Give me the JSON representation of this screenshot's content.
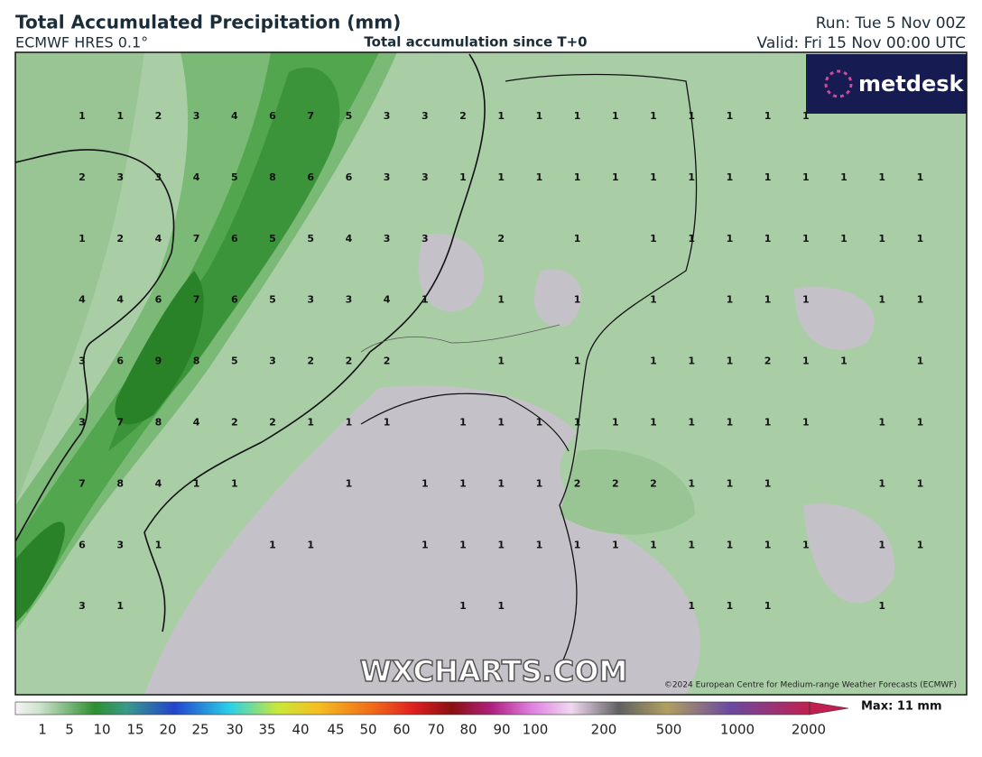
{
  "header": {
    "title": "Total Accumulated Precipitation (mm)",
    "model": "ECMWF HRES 0.1°",
    "subtitle": "Total accumulation since T+0",
    "run": "Run: Tue 5 Nov 00Z",
    "valid": "Valid: Fri 15 Nov 00:00 UTC"
  },
  "logo": "metdesk",
  "watermark": "WXCHARTS.COM",
  "copyright": "©2024 European Centre for Medium-range Weather Forecasts (ECMWF)",
  "grid": {
    "rows": [
      [
        1,
        1,
        2,
        3,
        4,
        6,
        7,
        5,
        3,
        3,
        2,
        1,
        1,
        1,
        1,
        1,
        1,
        1,
        1,
        1,
        null,
        null,
        null
      ],
      [
        2,
        3,
        3,
        4,
        5,
        8,
        6,
        6,
        3,
        3,
        1,
        1,
        1,
        1,
        1,
        1,
        1,
        1,
        1,
        1,
        1,
        1,
        1
      ],
      [
        1,
        2,
        4,
        7,
        6,
        5,
        5,
        4,
        3,
        3,
        null,
        2,
        null,
        1,
        null,
        1,
        1,
        1,
        1,
        1,
        1,
        1,
        1
      ],
      [
        4,
        4,
        6,
        7,
        6,
        5,
        3,
        3,
        4,
        1,
        null,
        1,
        null,
        1,
        null,
        1,
        null,
        1,
        1,
        1,
        null,
        1,
        1
      ],
      [
        3,
        6,
        9,
        8,
        5,
        3,
        2,
        2,
        2,
        null,
        null,
        1,
        null,
        1,
        null,
        1,
        1,
        1,
        2,
        1,
        1,
        null,
        1
      ],
      [
        3,
        7,
        8,
        4,
        2,
        2,
        1,
        1,
        1,
        null,
        1,
        1,
        1,
        1,
        1,
        1,
        1,
        1,
        1,
        1,
        null,
        1,
        1
      ],
      [
        7,
        8,
        4,
        1,
        1,
        null,
        null,
        1,
        null,
        1,
        1,
        1,
        1,
        2,
        2,
        2,
        1,
        1,
        1,
        null,
        null,
        1,
        1
      ],
      [
        6,
        3,
        1,
        null,
        null,
        1,
        1,
        null,
        null,
        1,
        1,
        1,
        1,
        1,
        1,
        1,
        1,
        1,
        1,
        1,
        null,
        1,
        1
      ],
      [
        3,
        1,
        null,
        null,
        null,
        null,
        null,
        null,
        null,
        null,
        1,
        1,
        null,
        null,
        null,
        null,
        1,
        1,
        1,
        null,
        null,
        1,
        null
      ]
    ]
  },
  "colorbar": {
    "labels": [
      1,
      5,
      10,
      15,
      20,
      25,
      30,
      35,
      40,
      45,
      50,
      60,
      70,
      80,
      90,
      100,
      200,
      500,
      1000,
      2000
    ],
    "max": "Max: 11 mm"
  }
}
